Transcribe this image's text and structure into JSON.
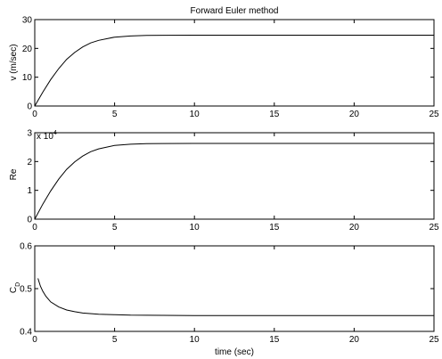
{
  "chart_data": [
    {
      "type": "line",
      "title": "Forward Euler method",
      "xlabel": "",
      "ylabel": "v (m/sec)",
      "ylabel_sub": "",
      "exponent": "",
      "xlim": [
        0,
        25
      ],
      "ylim": [
        0,
        30
      ],
      "xticks": [
        0,
        5,
        10,
        15,
        20,
        25
      ],
      "yticks": [
        0,
        10,
        20,
        30
      ],
      "grid": false,
      "series": [
        {
          "x": [
            0,
            0.5,
            1,
            1.5,
            2,
            2.5,
            3,
            3.5,
            4,
            5,
            6,
            7,
            8,
            10,
            12,
            15,
            20,
            25
          ],
          "y": [
            0,
            4.8,
            9.2,
            13.0,
            16.2,
            18.6,
            20.5,
            21.9,
            22.8,
            23.9,
            24.3,
            24.5,
            24.55,
            24.6,
            24.6,
            24.6,
            24.6,
            24.6
          ]
        }
      ]
    },
    {
      "type": "line",
      "title": "",
      "xlabel": "",
      "ylabel": "Re",
      "ylabel_sub": "",
      "exponent": "x 10",
      "exponent_power": "4",
      "xlim": [
        0,
        25
      ],
      "ylim": [
        0,
        3
      ],
      "xticks": [
        0,
        5,
        10,
        15,
        20,
        25
      ],
      "yticks": [
        0,
        1,
        2,
        3
      ],
      "grid": false,
      "series": [
        {
          "x": [
            0,
            0.5,
            1,
            1.5,
            2,
            2.5,
            3,
            3.5,
            4,
            5,
            6,
            7,
            8,
            10,
            12,
            15,
            20,
            25
          ],
          "y": [
            0,
            0.52,
            0.98,
            1.39,
            1.73,
            1.99,
            2.19,
            2.34,
            2.44,
            2.56,
            2.6,
            2.62,
            2.625,
            2.63,
            2.63,
            2.63,
            2.63,
            2.63
          ]
        }
      ]
    },
    {
      "type": "line",
      "title": "",
      "xlabel": "time (sec)",
      "ylabel": "C",
      "ylabel_sub": "D",
      "exponent": "",
      "xlim": [
        0,
        25
      ],
      "ylim": [
        0.4,
        0.6
      ],
      "xticks": [
        0,
        5,
        10,
        15,
        20,
        25
      ],
      "yticks": [
        0.4,
        0.5,
        0.6
      ],
      "grid": false,
      "series": [
        {
          "x": [
            0.2,
            0.35,
            0.5,
            0.7,
            1.0,
            1.5,
            2,
            2.5,
            3,
            4,
            5,
            6,
            8,
            10,
            15,
            20,
            25
          ],
          "y": [
            0.524,
            0.506,
            0.494,
            0.482,
            0.469,
            0.457,
            0.45,
            0.446,
            0.443,
            0.44,
            0.439,
            0.438,
            0.4375,
            0.437,
            0.437,
            0.437,
            0.437
          ]
        }
      ]
    }
  ]
}
